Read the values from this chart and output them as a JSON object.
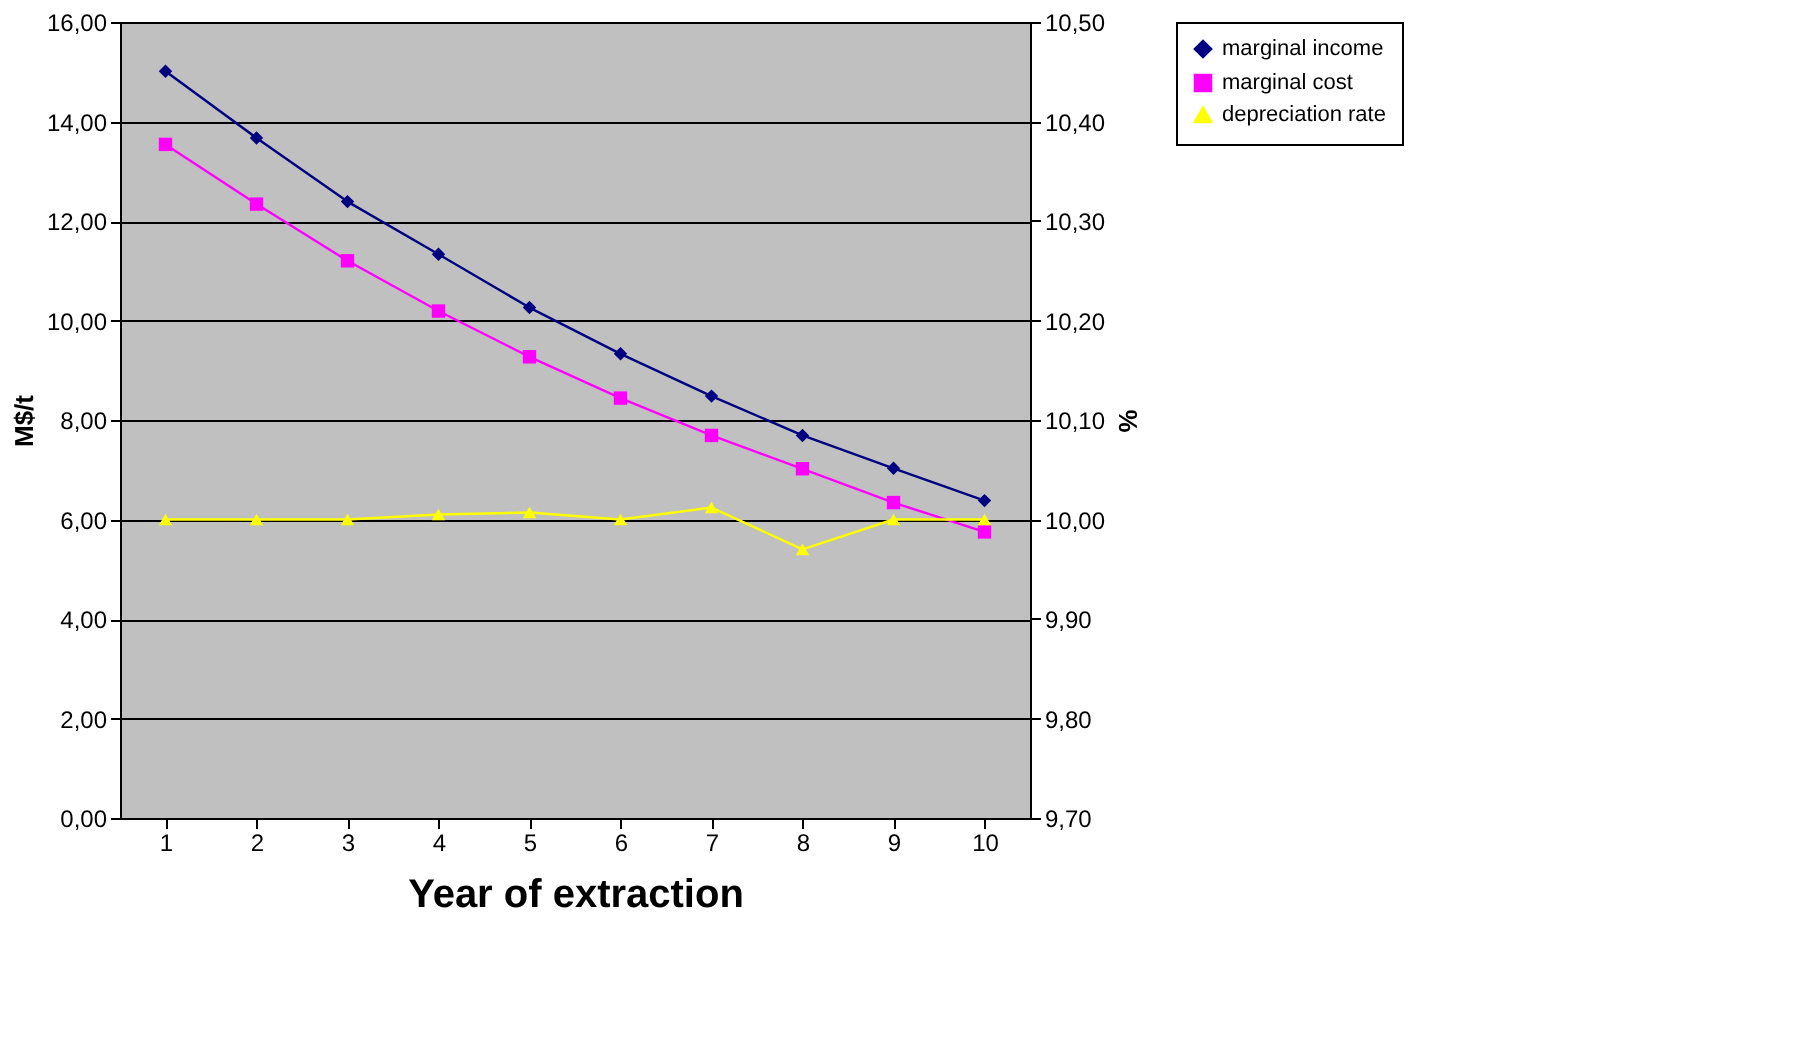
{
  "chart_data": {
    "type": "line",
    "xlabel": "Year of extraction",
    "ylabel": "M$/t",
    "y2label": "%",
    "categories": [
      "1",
      "2",
      "3",
      "4",
      "5",
      "6",
      "7",
      "8",
      "9",
      "10"
    ],
    "series": [
      {
        "name": "marginal income",
        "color": "#000080",
        "marker": "diamond",
        "values": [
          15.01,
          13.67,
          12.39,
          11.33,
          10.26,
          9.33,
          8.48,
          7.69,
          7.03,
          6.38
        ]
      },
      {
        "name": "marginal cost",
        "color": "#ff00ff",
        "marker": "square",
        "values": [
          13.54,
          12.34,
          11.2,
          10.19,
          9.27,
          8.44,
          7.69,
          7.02,
          6.34,
          5.75
        ]
      },
      {
        "name": "depreciation rate",
        "color": "#ffff00",
        "marker": "triangle",
        "axis": "y2",
        "values": [
          10.0,
          10.0,
          10.0,
          10.005,
          10.007,
          10.0,
          10.012,
          9.97,
          10.0,
          10.0
        ]
      }
    ],
    "ylim": [
      0,
      16
    ],
    "yticks": [
      {
        "value": 0,
        "label": "0,00"
      },
      {
        "value": 2,
        "label": "2,00"
      },
      {
        "value": 4,
        "label": "4,00"
      },
      {
        "value": 6,
        "label": "6,00"
      },
      {
        "value": 8,
        "label": "8,00"
      },
      {
        "value": 10,
        "label": "10,00"
      },
      {
        "value": 12,
        "label": "12,00"
      },
      {
        "value": 14,
        "label": "14,00"
      },
      {
        "value": 16,
        "label": "16,00"
      }
    ],
    "y2lim": [
      9.7,
      10.5
    ],
    "y2ticks": [
      {
        "value": 9.7,
        "label": "9,70"
      },
      {
        "value": 9.8,
        "label": "9,80"
      },
      {
        "value": 9.9,
        "label": "9,90"
      },
      {
        "value": 10.0,
        "label": "10,00"
      },
      {
        "value": 10.1,
        "label": "10,10"
      },
      {
        "value": 10.2,
        "label": "10,20"
      },
      {
        "value": 10.3,
        "label": "10,30"
      },
      {
        "value": 10.4,
        "label": "10,40"
      },
      {
        "value": 10.5,
        "label": "10,50"
      }
    ],
    "grid": "y",
    "legend": "right",
    "line_style": "solid"
  }
}
